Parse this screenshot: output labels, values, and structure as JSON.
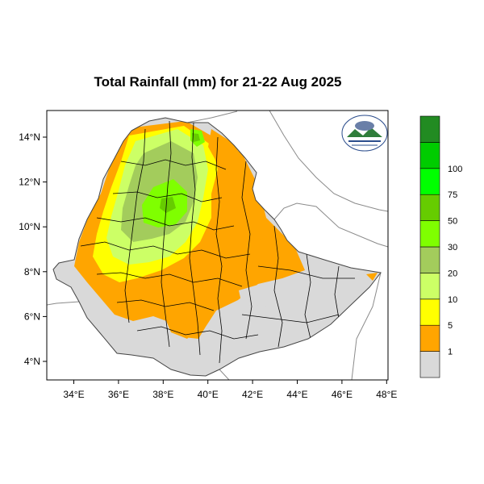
{
  "title": "Total Rainfall (mm) for 21-22 Aug 2025",
  "map": {
    "lon_ticks": [
      "34°E",
      "36°E",
      "38°E",
      "40°E",
      "42°E",
      "44°E",
      "46°E",
      "48°E"
    ],
    "lat_ticks": [
      "14°N",
      "12°N",
      "10°N",
      "8°N",
      "6°N",
      "4°N"
    ],
    "colors": {
      "land_no_rain": "#d9d9d9",
      "sea": "#ffffff",
      "country_border": "#888888",
      "admin_border": "#000000"
    }
  },
  "colorbar": {
    "labels": [
      "1",
      "5",
      "10",
      "20",
      "30",
      "50",
      "75",
      "100"
    ],
    "colors": [
      "#d9d9d9",
      "#ffa500",
      "#ffff00",
      "#ccff66",
      "#a3cc5c",
      "#7fff00",
      "#66cc00",
      "#00ff00",
      "#00cc00",
      "#228b22"
    ]
  },
  "logo": {
    "icon": "meteorology-agency-logo"
  }
}
